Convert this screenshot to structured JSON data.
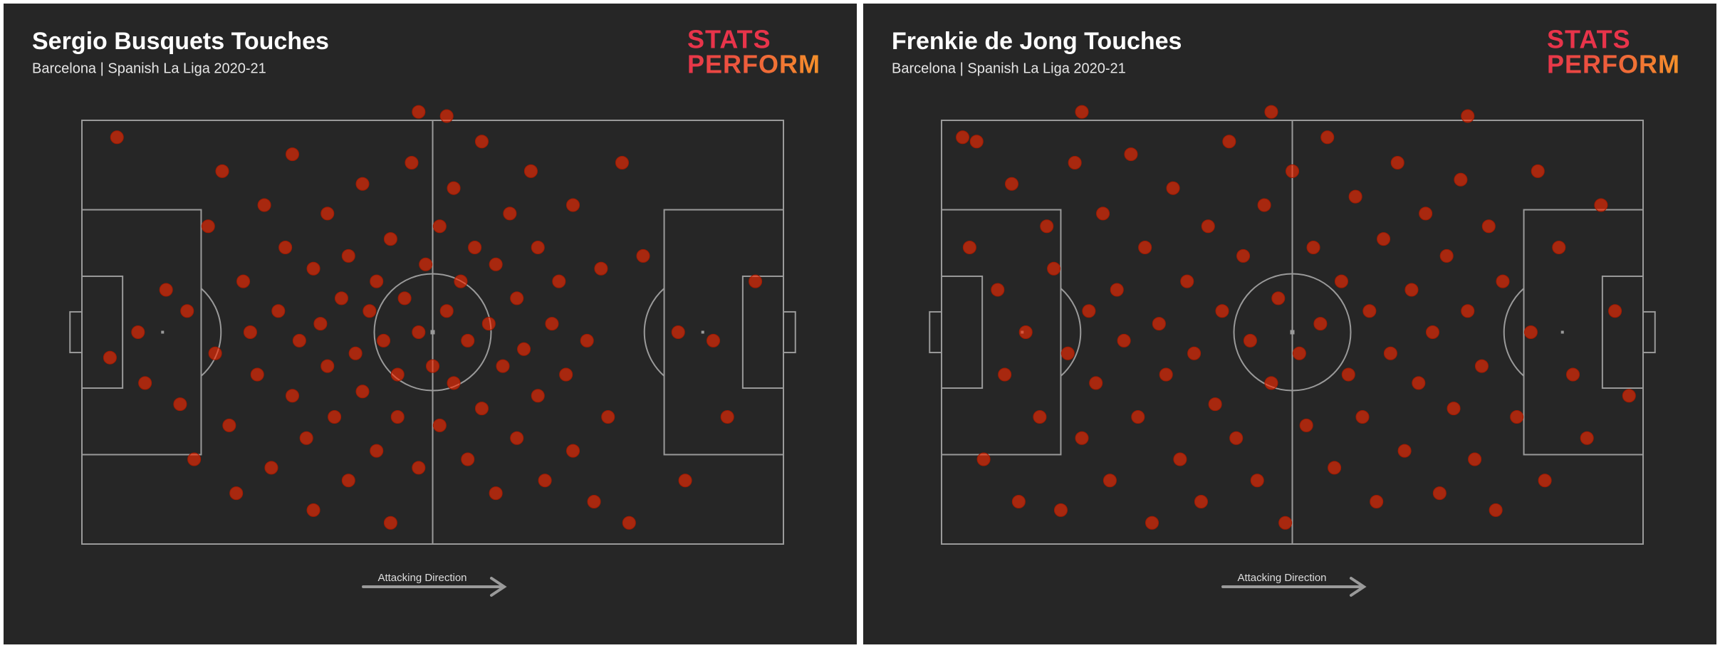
{
  "chart_data": [
    {
      "type": "scatter",
      "title": "Sergio Busquets Touches",
      "subtitle": "Barcelona | Spanish La Liga 2020-21",
      "logo": [
        "STATS",
        "PERFORM"
      ],
      "annotation": "Attacking Direction",
      "color": "#ff2a00",
      "xlim": [
        0,
        100
      ],
      "ylim": [
        0,
        100
      ],
      "x": [
        5,
        8,
        4,
        9,
        12,
        14,
        15,
        16,
        18,
        19,
        20,
        21,
        22,
        23,
        24,
        25,
        26,
        27,
        28,
        29,
        30,
        30,
        31,
        32,
        33,
        33,
        34,
        35,
        35,
        36,
        37,
        38,
        38,
        39,
        40,
        40,
        41,
        42,
        42,
        43,
        44,
        44,
        45,
        45,
        46,
        47,
        48,
        48,
        49,
        50,
        51,
        51,
        52,
        53,
        53,
        54,
        55,
        55,
        56,
        57,
        57,
        58,
        59,
        59,
        60,
        61,
        62,
        62,
        63,
        64,
        65,
        65,
        66,
        67,
        68,
        69,
        70,
        70,
        72,
        73,
        74,
        75,
        77,
        78,
        80,
        85,
        90,
        92,
        96,
        86,
        48,
        52
      ],
      "y": [
        96,
        50,
        44,
        38,
        60,
        33,
        55,
        20,
        75,
        45,
        88,
        28,
        12,
        62,
        50,
        40,
        80,
        18,
        55,
        70,
        35,
        92,
        48,
        25,
        65,
        8,
        52,
        42,
        78,
        30,
        58,
        15,
        68,
        45,
        85,
        36,
        55,
        22,
        62,
        48,
        72,
        5,
        40,
        30,
        58,
        90,
        50,
        18,
        66,
        42,
        75,
        28,
        55,
        38,
        84,
        62,
        20,
        48,
        70,
        32,
        95,
        52,
        12,
        66,
        42,
        78,
        25,
        58,
        46,
        88,
        35,
        70,
        15,
        52,
        62,
        40,
        80,
        22,
        48,
        10,
        65,
        30,
        90,
        5,
        68,
        50,
        48,
        30,
        62,
        15,
        102,
        101
      ]
    },
    {
      "type": "scatter",
      "title": "Frenkie de Jong Touches",
      "subtitle": "Barcelona | Spanish La Liga 2020-21",
      "logo": [
        "STATS",
        "PERFORM"
      ],
      "annotation": "Attacking Direction",
      "color": "#ff2a00",
      "xlim": [
        0,
        100
      ],
      "ylim": [
        0,
        100
      ],
      "x": [
        3,
        5,
        4,
        6,
        8,
        9,
        10,
        11,
        12,
        14,
        15,
        16,
        17,
        18,
        19,
        20,
        21,
        22,
        23,
        24,
        25,
        26,
        27,
        28,
        29,
        30,
        31,
        32,
        33,
        34,
        35,
        36,
        37,
        38,
        39,
        40,
        41,
        42,
        43,
        44,
        45,
        46,
        47,
        48,
        49,
        50,
        51,
        52,
        53,
        54,
        55,
        56,
        57,
        58,
        59,
        60,
        61,
        62,
        63,
        64,
        65,
        66,
        67,
        68,
        69,
        70,
        71,
        72,
        73,
        74,
        75,
        76,
        77,
        78,
        79,
        80,
        82,
        84,
        85,
        86,
        88,
        90,
        92,
        94,
        96,
        98,
        20,
        47,
        75
      ],
      "y": [
        96,
        95,
        70,
        20,
        60,
        40,
        85,
        10,
        50,
        30,
        75,
        65,
        8,
        45,
        90,
        25,
        55,
        38,
        78,
        15,
        60,
        48,
        92,
        30,
        70,
        5,
        52,
        40,
        84,
        20,
        62,
        45,
        10,
        75,
        33,
        55,
        95,
        25,
        68,
        48,
        15,
        80,
        38,
        58,
        5,
        88,
        45,
        28,
        70,
        52,
        96,
        18,
        62,
        40,
        82,
        30,
        55,
        10,
        72,
        45,
        90,
        22,
        60,
        38,
        78,
        50,
        12,
        68,
        32,
        86,
        55,
        20,
        42,
        75,
        8,
        62,
        30,
        50,
        88,
        15,
        70,
        40,
        25,
        80,
        55,
        35,
        102,
        102,
        101
      ]
    }
  ]
}
